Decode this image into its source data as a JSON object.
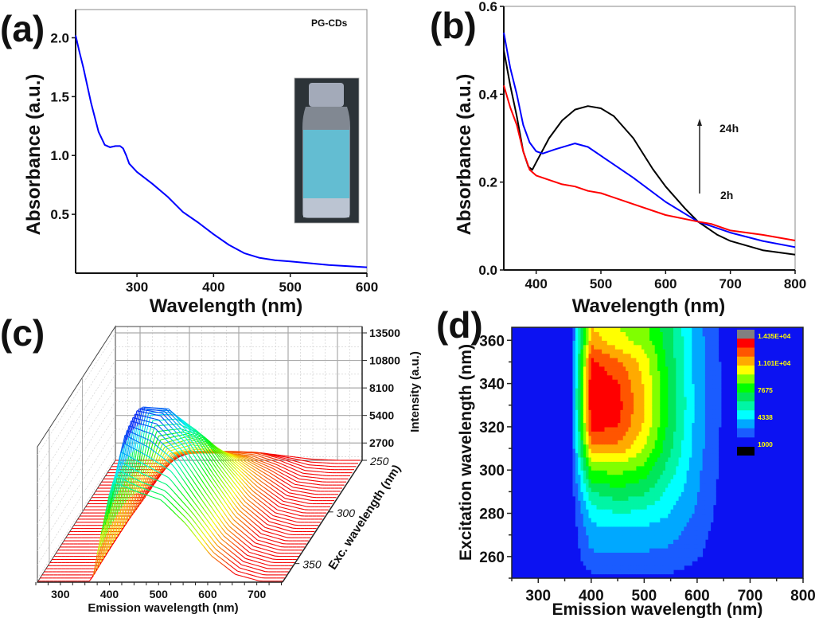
{
  "panel_labels": {
    "a": "(a)",
    "b": "(b)",
    "c": "(c)",
    "d": "(d)"
  },
  "chart_data": [
    {
      "panel": "(a)",
      "type": "line",
      "xlabel": "Wavelength (nm)",
      "ylabel": "Absorbance (a.u.)",
      "xlim": [
        220,
        600
      ],
      "ylim": [
        0,
        2.24
      ],
      "xticks": [
        "300",
        "400",
        "500",
        "600"
      ],
      "yticks": [
        "0.5",
        "1.0",
        "1.5",
        "2.0"
      ],
      "grid": false,
      "annotation": "PG-CDs",
      "inset": "photo of vial with blue-fluorescent liquid",
      "series": [
        {
          "color": "#0000ff",
          "x": [
            220,
            225,
            230,
            240,
            250,
            258,
            265,
            272,
            278,
            282,
            286,
            290,
            300,
            320,
            340,
            360,
            380,
            400,
            420,
            440,
            460,
            480,
            500,
            550,
            600
          ],
          "y": [
            2.02,
            1.88,
            1.75,
            1.45,
            1.2,
            1.09,
            1.07,
            1.08,
            1.08,
            1.06,
            1.0,
            0.93,
            0.86,
            0.76,
            0.65,
            0.52,
            0.43,
            0.33,
            0.24,
            0.17,
            0.13,
            0.11,
            0.1,
            0.07,
            0.05
          ]
        }
      ]
    },
    {
      "panel": "(b)",
      "type": "line",
      "xlabel": "Wavelength (nm)",
      "ylabel": "Absorbance (a.u.)",
      "xlim": [
        350,
        800
      ],
      "ylim": [
        0,
        0.6
      ],
      "xticks": [
        "400",
        "500",
        "600",
        "700",
        "800"
      ],
      "yticks": [
        "0.0",
        "0.2",
        "0.4",
        "0.6"
      ],
      "grid": false,
      "annotations": {
        "top": "24h",
        "bottom": "2h"
      },
      "series": [
        {
          "color": "#000000",
          "x": [
            350,
            360,
            370,
            380,
            388,
            394,
            400,
            420,
            440,
            460,
            480,
            500,
            520,
            550,
            580,
            600,
            630,
            650,
            680,
            700,
            750,
            800
          ],
          "y": [
            0.5,
            0.42,
            0.35,
            0.27,
            0.235,
            0.228,
            0.245,
            0.3,
            0.34,
            0.365,
            0.373,
            0.368,
            0.35,
            0.3,
            0.23,
            0.19,
            0.14,
            0.11,
            0.08,
            0.066,
            0.045,
            0.035
          ]
        },
        {
          "color": "#0000ff",
          "x": [
            350,
            360,
            370,
            380,
            390,
            400,
            410,
            430,
            460,
            480,
            500,
            550,
            600,
            650,
            700,
            750,
            800
          ],
          "y": [
            0.54,
            0.46,
            0.4,
            0.33,
            0.29,
            0.27,
            0.265,
            0.275,
            0.288,
            0.28,
            0.26,
            0.21,
            0.155,
            0.11,
            0.085,
            0.066,
            0.052
          ]
        },
        {
          "color": "#ff0000",
          "x": [
            350,
            360,
            370,
            380,
            390,
            400,
            420,
            440,
            460,
            480,
            500,
            550,
            600,
            650,
            670,
            700,
            750,
            800
          ],
          "y": [
            0.42,
            0.37,
            0.33,
            0.27,
            0.228,
            0.215,
            0.205,
            0.195,
            0.19,
            0.18,
            0.175,
            0.15,
            0.125,
            0.11,
            0.105,
            0.09,
            0.08,
            0.067
          ]
        }
      ]
    },
    {
      "panel": "(c)",
      "type": "surface",
      "xlabel": "Emission wavelength (nm)",
      "ylabel": "Exc. wavelength (nm)",
      "zlabel": "Intensity (a.u.)",
      "xlim": [
        250,
        750
      ],
      "ylim": [
        250,
        368
      ],
      "xticks": [
        "300",
        "400",
        "500",
        "600",
        "700"
      ],
      "yticks": [
        "250",
        "300",
        "350"
      ],
      "zticks": [
        "2700",
        "5400",
        "8100",
        "10800",
        "13500"
      ],
      "emission": [
        250,
        300,
        360,
        375,
        400,
        450,
        500,
        550,
        600,
        650,
        700,
        800
      ],
      "excitation": [
        250,
        260,
        270,
        280,
        290,
        300,
        310,
        320,
        330,
        340,
        350,
        360,
        370
      ],
      "z": [
        [
          0,
          0,
          0,
          280,
          700,
          800,
          800,
          700,
          400,
          100,
          0,
          0
        ],
        [
          0,
          0,
          0,
          760,
          1900,
          1900,
          1900,
          1800,
          1100,
          200,
          0,
          0
        ],
        [
          0,
          0,
          0,
          1040,
          2600,
          2700,
          2700,
          2400,
          1500,
          300,
          0,
          0
        ],
        [
          0,
          0,
          0,
          1480,
          3700,
          4300,
          4000,
          3200,
          1900,
          400,
          0,
          0
        ],
        [
          0,
          0,
          0,
          2160,
          5400,
          6200,
          5600,
          4000,
          2200,
          500,
          0,
          0
        ],
        [
          0,
          0,
          0,
          3080,
          7700,
          8000,
          7300,
          4800,
          2400,
          600,
          0,
          0
        ],
        [
          0,
          0,
          0,
          4200,
          10500,
          10600,
          8800,
          5600,
          2600,
          650,
          0,
          0
        ],
        [
          0,
          0,
          0,
          4960,
          12400,
          12200,
          9700,
          6000,
          2700,
          700,
          0,
          0
        ],
        [
          0,
          0,
          0,
          5240,
          13100,
          12600,
          10000,
          6300,
          2800,
          700,
          0,
          0
        ],
        [
          0,
          0,
          0,
          5200,
          13000,
          12300,
          9800,
          6200,
          2700,
          700,
          0,
          0
        ],
        [
          0,
          0,
          0,
          5000,
          12500,
          11200,
          9500,
          6000,
          2700,
          700,
          0,
          0
        ],
        [
          0,
          0,
          0,
          4200,
          10500,
          9200,
          8300,
          5800,
          2600,
          700,
          0,
          0
        ],
        [
          0,
          0,
          0,
          3800,
          9500,
          8600,
          7800,
          5500,
          2500,
          650,
          0,
          0
        ]
      ]
    },
    {
      "panel": "(d)",
      "type": "heatmap",
      "xlabel": "Emission wavelength (nm)",
      "ylabel": "Excitation wavelength (nm)",
      "xlim": [
        250,
        800
      ],
      "ylim": [
        250,
        366
      ],
      "xticks": [
        "300",
        "400",
        "500",
        "600",
        "700",
        "800"
      ],
      "yticks": [
        "260",
        "280",
        "300",
        "320",
        "340",
        "360"
      ],
      "background_color": "#0c12f2",
      "colorbar": {
        "min": 1000,
        "max": 14350,
        "labels": [
          "1.435E+04",
          "1.101E+04",
          "7675",
          "4338",
          "1000"
        ],
        "colors": [
          "#1a5cff",
          "#00a8ff",
          "#00ffff",
          "#00f5a5",
          "#00e65a",
          "#00ff00",
          "#80ff00",
          "#ffff00",
          "#ffaa00",
          "#ff5500",
          "#ff0000",
          "#808080"
        ],
        "low_color": "#000000"
      },
      "emission": [
        250,
        300,
        360,
        375,
        400,
        450,
        500,
        550,
        600,
        650,
        700,
        800
      ],
      "excitation": [
        250,
        260,
        270,
        280,
        290,
        300,
        310,
        320,
        330,
        340,
        350,
        360,
        370
      ],
      "z": [
        [
          0,
          0,
          0,
          280,
          700,
          800,
          800,
          700,
          400,
          100,
          0,
          0
        ],
        [
          0,
          0,
          0,
          760,
          1900,
          1900,
          1900,
          1800,
          1100,
          200,
          0,
          0
        ],
        [
          0,
          0,
          0,
          1040,
          2600,
          2700,
          2700,
          2400,
          1500,
          300,
          0,
          0
        ],
        [
          0,
          0,
          0,
          1480,
          3700,
          4300,
          4000,
          3200,
          1900,
          400,
          0,
          0
        ],
        [
          0,
          0,
          0,
          2160,
          5400,
          6200,
          5600,
          4000,
          2200,
          500,
          0,
          0
        ],
        [
          0,
          0,
          0,
          3080,
          7700,
          8000,
          7300,
          4800,
          2400,
          600,
          0,
          0
        ],
        [
          0,
          0,
          0,
          4200,
          10500,
          10600,
          8800,
          5600,
          2600,
          650,
          0,
          0
        ],
        [
          0,
          0,
          0,
          4960,
          12400,
          12200,
          9700,
          6000,
          2700,
          700,
          0,
          0
        ],
        [
          0,
          0,
          0,
          5240,
          13100,
          12600,
          10000,
          6300,
          2800,
          700,
          0,
          0
        ],
        [
          0,
          0,
          0,
          5200,
          13000,
          12300,
          9800,
          6200,
          2700,
          700,
          0,
          0
        ],
        [
          0,
          0,
          0,
          5000,
          12500,
          11200,
          9500,
          6000,
          2700,
          700,
          0,
          0
        ],
        [
          0,
          0,
          0,
          4200,
          10500,
          9200,
          8300,
          5800,
          2600,
          700,
          0,
          0
        ],
        [
          0,
          0,
          0,
          3800,
          9500,
          8600,
          7800,
          5500,
          2500,
          650,
          0,
          0
        ]
      ]
    }
  ]
}
